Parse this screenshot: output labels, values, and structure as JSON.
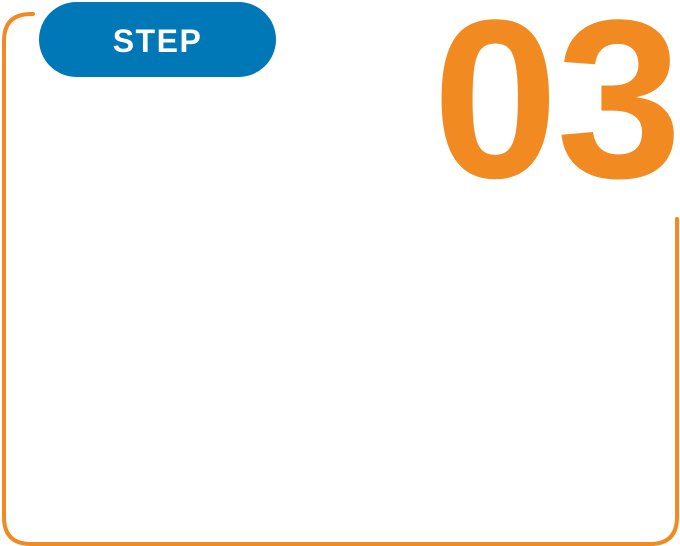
{
  "step": {
    "label": "STEP",
    "number": "03"
  },
  "colors": {
    "pill_background": "#0077b6",
    "pill_text": "#ffffff",
    "accent_orange": "#f28a22",
    "background": "#ffffff"
  }
}
